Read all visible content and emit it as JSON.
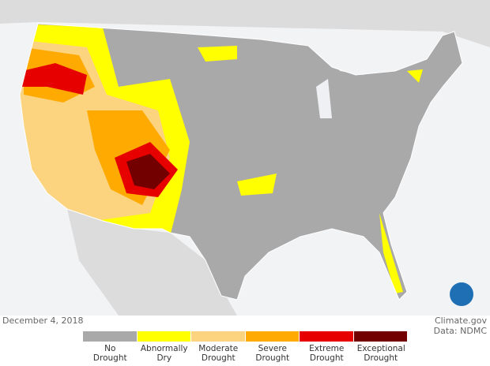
{
  "footer": {
    "date": "December 4, 2018",
    "credit": "Climate.gov",
    "source": "Data: NDMC"
  },
  "legend": {
    "items": [
      {
        "label": "No Drought",
        "color": "#a9a9a9"
      },
      {
        "label": "Abnormally Dry",
        "color": "#ffff00"
      },
      {
        "label": "Moderate Drought",
        "color": "#fcd37f"
      },
      {
        "label": "Severe Drought",
        "color": "#ffaa00"
      },
      {
        "label": "Extreme Drought",
        "color": "#e60000"
      },
      {
        "label": "Exceptional Drought",
        "color": "#730000"
      }
    ]
  }
}
